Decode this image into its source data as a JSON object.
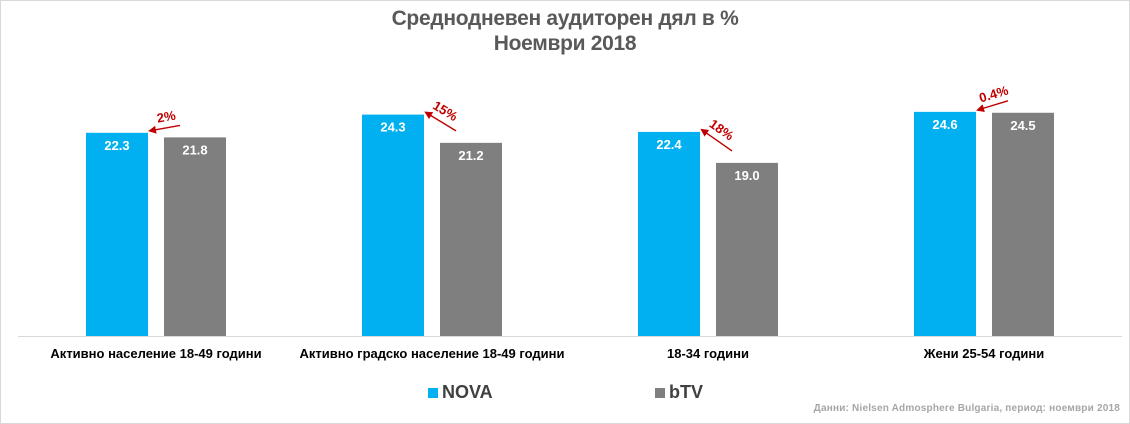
{
  "title_line1": "Среднодневен аудиторен дял в %",
  "title_line2": "Ноември 2018",
  "source": "Данни: Nielsen Admosphere Bulgaria, период: ноември 2018",
  "colors": {
    "nova": "#00b0f0",
    "btv": "#7f7f7f",
    "diff": "#c00000"
  },
  "chart_data": {
    "type": "bar",
    "categories": [
      "Активно население 18-49 години",
      "Активно градско население 18-49 години",
      "18-34 години",
      "Жени 25-54 години"
    ],
    "series": [
      {
        "name": "NOVA",
        "values": [
          22.3,
          24.3,
          22.4,
          24.6
        ]
      },
      {
        "name": "bTV",
        "values": [
          21.8,
          21.2,
          19.0,
          24.5
        ]
      }
    ],
    "value_labels": {
      "NOVA": [
        "22.3",
        "24.3",
        "22.4",
        "24.6"
      ],
      "bTV": [
        "21.8",
        "21.2",
        "19.0",
        "24.5"
      ]
    },
    "differences": [
      "2%",
      "15%",
      "18%",
      "0.4%"
    ],
    "ylim": [
      0,
      27
    ],
    "grid": false,
    "legend": "bottom-center"
  }
}
